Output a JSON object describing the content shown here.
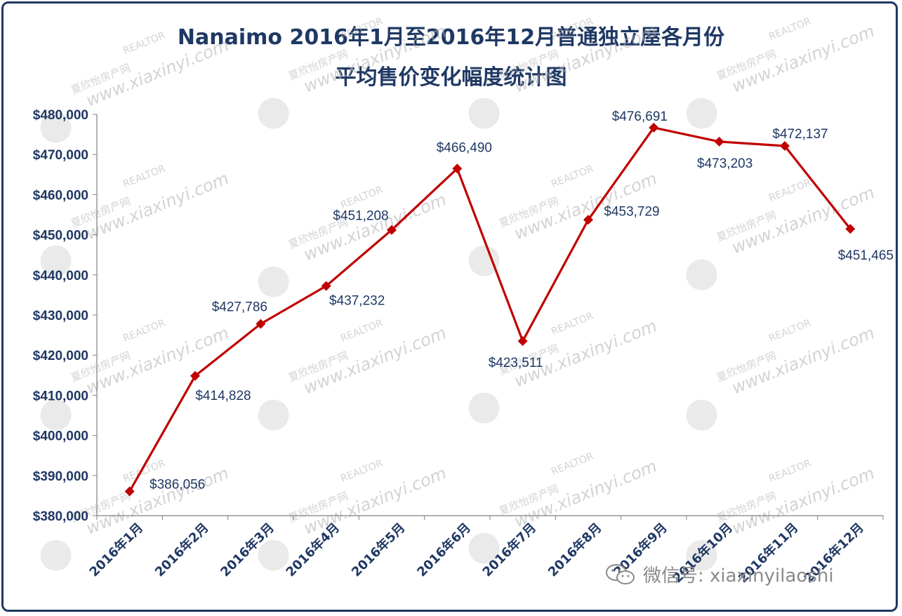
{
  "title_line1": "Nanaimo 2016年1月至2016年12月普通独立屋各月份",
  "title_line2": "平均售价变化幅度统计图",
  "watermark": {
    "site": "www.xiaxinyi.com",
    "cn": "夏欣怡房产网",
    "realtor": "REALTOR"
  },
  "footer": {
    "label": "微信号: xiaxinyilaoshi",
    "icon": "wechat-icon"
  },
  "colors": {
    "line": "#c00000",
    "text": "#1f3864",
    "border": "#1f3864"
  },
  "chart_data": {
    "type": "line",
    "title": "Nanaimo 2016年1月至2016年12月普通独立屋各月份 平均售价变化幅度统计图",
    "categories": [
      "2016年1月",
      "2016年2月",
      "2016年3月",
      "2016年4月",
      "2016年5月",
      "2016年6月",
      "2016年7月",
      "2016年8月",
      "2016年9月",
      "2016年10月",
      "2016年11月",
      "2016年12月"
    ],
    "values": [
      386056,
      414828,
      427786,
      437232,
      451208,
      466490,
      423511,
      453729,
      476691,
      473203,
      472137,
      451465
    ],
    "data_labels": [
      "$386,056",
      "$414,828",
      "$427,786",
      "$437,232",
      "$451,208",
      "$466,490",
      "$423,511",
      "$453,729",
      "$476,691",
      "$473,203",
      "$472,137",
      "$451,465"
    ],
    "ylim": [
      380000,
      480000
    ],
    "yticks": [
      "$380,000",
      "$390,000",
      "$400,000",
      "$410,000",
      "$420,000",
      "$430,000",
      "$440,000",
      "$450,000",
      "$460,000",
      "$470,000",
      "$480,000"
    ],
    "ytick_values": [
      380000,
      390000,
      400000,
      410000,
      420000,
      430000,
      440000,
      450000,
      460000,
      470000,
      480000
    ],
    "marker": "diamond",
    "grid": false,
    "legend": "none"
  }
}
